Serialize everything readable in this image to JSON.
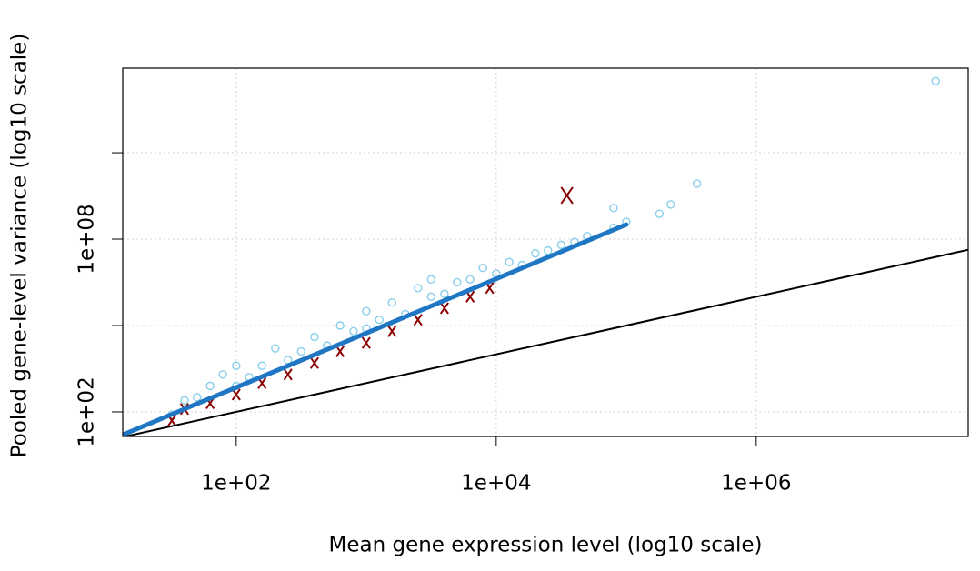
{
  "chart_data": {
    "type": "scatter",
    "x_label": "Mean gene expression level (log10 scale)",
    "y_label": "Pooled gene-level variance (log10 scale)",
    "log_x": true,
    "log_y": true,
    "grid": true,
    "xlim": [
      13.4,
      42700000
    ],
    "ylim": [
      14,
      87000000000000
    ],
    "xticks": [
      {
        "value": 100,
        "label": "1e+02"
      },
      {
        "value": 10000,
        "label": "1e+04"
      },
      {
        "value": 1000000,
        "label": "1e+06"
      }
    ],
    "yticks": [
      {
        "value": 100,
        "label": "1e+02"
      },
      {
        "value": 100000,
        "label": null
      },
      {
        "value": 100000000,
        "label": "1e+08"
      },
      {
        "value": 100000000000,
        "label": null
      }
    ],
    "series": [
      {
        "mark": "circle",
        "color": "#87ceeb",
        "x": [
          32,
          40,
          50,
          63,
          79,
          100,
          100,
          126,
          158,
          200,
          250,
          316,
          400,
          500,
          630,
          800,
          1000,
          1000,
          1260,
          1580,
          2000,
          2500,
          3160,
          3160,
          4000,
          5000,
          6300,
          7900,
          10000,
          12600,
          15800,
          20000,
          25000,
          31600,
          40000,
          50000,
          80000,
          100000,
          80000,
          180000,
          220000,
          350000,
          24000000
        ],
        "values": [
          80,
          250,
          320,
          800,
          2000,
          800,
          4000,
          1600,
          4000,
          16000,
          6300,
          12600,
          40000,
          20000,
          100000,
          63000,
          79000,
          316000,
          158000,
          630000,
          250000,
          2000000,
          1000000,
          4000000,
          1260000,
          3160000,
          4000000,
          10000000,
          6300000,
          16000000,
          12600000,
          32000000,
          40000000,
          63000000,
          80000000,
          126000000,
          250000000,
          400000000,
          1200000000,
          760000000,
          1600000000,
          8500000000,
          31000000000000
        ]
      },
      {
        "mark": "cross",
        "color": "#8b0000",
        "x": [
          32,
          40,
          63,
          100,
          158,
          250,
          400,
          630,
          1000,
          1580,
          2500,
          4000,
          6300,
          8900,
          35000
        ],
        "values": [
          50,
          126,
          200,
          400,
          1000,
          2000,
          5000,
          12600,
          25000,
          63000,
          158000,
          400000,
          1000000,
          2000000,
          3300000000
        ]
      },
      {
        "mark": "line",
        "color": "#1f77c4",
        "width": 5,
        "x": [
          13.4,
          100000
        ],
        "values": [
          16,
          320000000
        ]
      },
      {
        "mark": "line",
        "color": "#000000",
        "width": 2,
        "x": [
          13.4,
          42700000
        ],
        "values": [
          13.4,
          42700000
        ]
      }
    ]
  }
}
